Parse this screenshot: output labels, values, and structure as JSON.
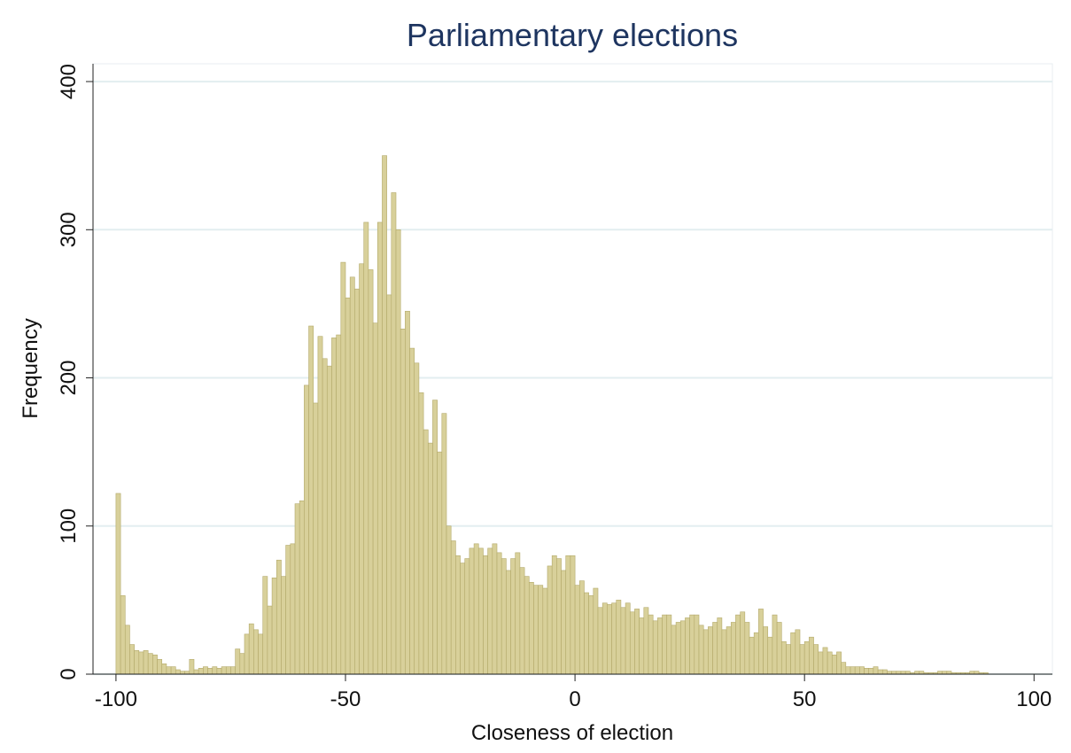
{
  "chart_data": {
    "type": "histogram",
    "title": "Parliamentary elections",
    "xlabel": "Closeness of election",
    "ylabel": "Frequency",
    "color": "#d8d09a",
    "edgecolor": "#b3a96a",
    "grid": true,
    "bins": [
      -100,
      -99,
      -98,
      -97,
      -96,
      -95,
      -94,
      -93,
      -92,
      -91,
      -90,
      -89,
      -88,
      -87,
      -86,
      -85,
      -84,
      -83,
      -82,
      -81,
      -80,
      -79,
      -78,
      -77,
      -76,
      -75,
      -74,
      -73,
      -72,
      -71,
      -70,
      -69,
      -68,
      -67,
      -66,
      -65,
      -64,
      -63,
      -62,
      -61,
      -60,
      -59,
      -58,
      -57,
      -56,
      -55,
      -54,
      -53,
      -52,
      -51,
      -50,
      -49,
      -48,
      -47,
      -46,
      -45,
      -44,
      -43,
      -42,
      -41,
      -40,
      -39,
      -38,
      -37,
      -36,
      -35,
      -34,
      -33,
      -32,
      -31,
      -30,
      -29,
      -28,
      -27,
      -26,
      -25,
      -24,
      -23,
      -22,
      -21,
      -20,
      -19,
      -18,
      -17,
      -16,
      -15,
      -14,
      -13,
      -12,
      -11,
      -10,
      -9,
      -8,
      -7,
      -6,
      -5,
      -4,
      -3,
      -2,
      -1,
      0,
      1,
      2,
      3,
      4,
      5,
      6,
      7,
      8,
      9,
      10,
      11,
      12,
      13,
      14,
      15,
      16,
      17,
      18,
      19,
      20,
      21,
      22,
      23,
      24,
      25,
      26,
      27,
      28,
      29,
      30,
      31,
      32,
      33,
      34,
      35,
      36,
      37,
      38,
      39,
      40,
      41,
      42,
      43,
      44,
      45,
      46,
      47,
      48,
      49,
      50,
      51,
      52,
      53,
      54,
      55,
      56,
      57,
      58,
      59,
      60,
      61,
      62,
      63,
      64,
      65,
      66,
      67,
      68,
      69,
      70,
      71,
      72,
      73,
      74,
      75,
      76,
      77,
      78,
      79,
      80,
      81,
      82,
      83,
      84,
      85,
      86,
      87,
      88,
      89,
      90
    ],
    "values": [
      122,
      53,
      33,
      20,
      16,
      15,
      16,
      14,
      13,
      10,
      7,
      5,
      5,
      3,
      2,
      2,
      10,
      3,
      4,
      5,
      4,
      5,
      4,
      5,
      5,
      5,
      17,
      14,
      27,
      34,
      30,
      27,
      66,
      46,
      65,
      77,
      66,
      87,
      88,
      115,
      117,
      195,
      235,
      183,
      228,
      213,
      208,
      227,
      229,
      278,
      254,
      268,
      260,
      277,
      305,
      273,
      237,
      305,
      350,
      256,
      325,
      300,
      233,
      245,
      220,
      210,
      190,
      165,
      156,
      185,
      150,
      176,
      100,
      90,
      80,
      75,
      78,
      85,
      88,
      85,
      80,
      85,
      88,
      82,
      78,
      70,
      78,
      82,
      72,
      66,
      62,
      60,
      60,
      58,
      73,
      80,
      78,
      70,
      80,
      80,
      60,
      63,
      55,
      53,
      58,
      45,
      48,
      47,
      48,
      50,
      45,
      48,
      42,
      44,
      38,
      45,
      40,
      36,
      38,
      40,
      40,
      33,
      35,
      36,
      38,
      40,
      40,
      33,
      30,
      32,
      35,
      38,
      30,
      32,
      35,
      40,
      42,
      35,
      25,
      28,
      44,
      32,
      25,
      40,
      35,
      22,
      20,
      28,
      30,
      20,
      22,
      25,
      20,
      15,
      18,
      15,
      13,
      15,
      8,
      5,
      5,
      5,
      5,
      4,
      4,
      5,
      3,
      3,
      2,
      2,
      2,
      2,
      2,
      1,
      2,
      2,
      1,
      1,
      1,
      2,
      2,
      2,
      1,
      1,
      1,
      1,
      2,
      2,
      1,
      1
    ],
    "xlim": [
      -105,
      104
    ],
    "xticks": [
      -100,
      -50,
      0,
      50,
      100
    ],
    "ylim": [
      0,
      412
    ],
    "yticks": [
      0,
      100,
      200,
      300,
      400
    ]
  }
}
